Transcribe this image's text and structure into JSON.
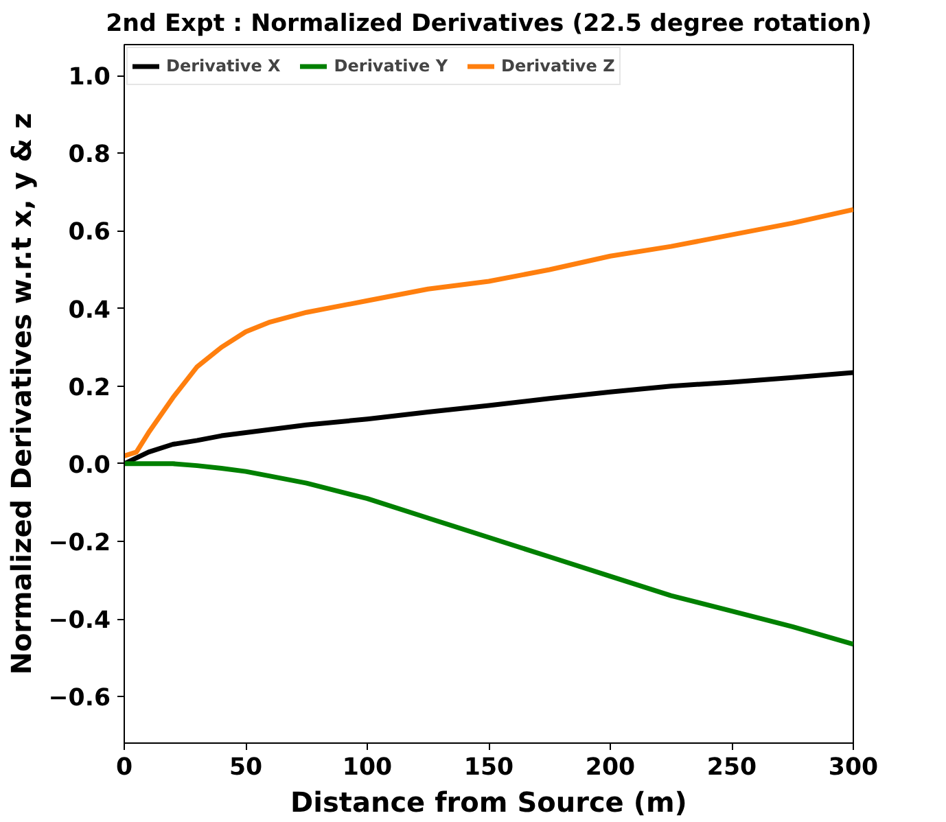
{
  "chart_data": {
    "type": "line",
    "title": "2nd Expt : Normalized Derivatives (22.5 degree rotation)",
    "xlabel": "Distance from Source (m)",
    "ylabel": "Normalized Derivatives w.r.t x, y & z",
    "x": [
      0,
      5,
      10,
      20,
      30,
      40,
      50,
      60,
      75,
      100,
      125,
      150,
      175,
      200,
      225,
      250,
      275,
      300
    ],
    "series": [
      {
        "name": "Derivative X",
        "color": "#000000",
        "values": [
          0.0,
          0.015,
          0.03,
          0.05,
          0.06,
          0.072,
          0.08,
          0.088,
          0.1,
          0.115,
          0.133,
          0.15,
          0.168,
          0.185,
          0.2,
          0.21,
          0.222,
          0.235
        ]
      },
      {
        "name": "Derivative Y",
        "color": "#008000",
        "values": [
          0.0,
          0.0,
          0.0,
          0.0,
          -0.005,
          -0.012,
          -0.02,
          -0.032,
          -0.05,
          -0.09,
          -0.14,
          -0.19,
          -0.24,
          -0.29,
          -0.34,
          -0.38,
          -0.42,
          -0.465
        ]
      },
      {
        "name": "Derivative Z",
        "color": "#ff7f0e",
        "values": [
          0.02,
          0.03,
          0.08,
          0.17,
          0.25,
          0.3,
          0.34,
          0.365,
          0.39,
          0.42,
          0.45,
          0.47,
          0.5,
          0.535,
          0.56,
          0.59,
          0.62,
          0.655
        ]
      }
    ],
    "xlim": [
      0,
      300
    ],
    "ylim": [
      -0.72,
      1.08
    ],
    "xticks": [
      0,
      50,
      100,
      150,
      200,
      250,
      300
    ],
    "yticks": [
      {
        "value": -0.6,
        "label": "−0.6"
      },
      {
        "value": -0.4,
        "label": "−0.4"
      },
      {
        "value": -0.2,
        "label": "−0.2"
      },
      {
        "value": 0,
        "label": "0.0"
      },
      {
        "value": 0.2,
        "label": "0.2"
      },
      {
        "value": 0.4,
        "label": "0.4"
      },
      {
        "value": 0.6,
        "label": "0.6"
      },
      {
        "value": 0.8,
        "label": "0.8"
      },
      {
        "value": 1.0,
        "label": "1.0"
      }
    ],
    "grid": false,
    "legend": "top left",
    "marker": "none",
    "line_style": "solid"
  }
}
